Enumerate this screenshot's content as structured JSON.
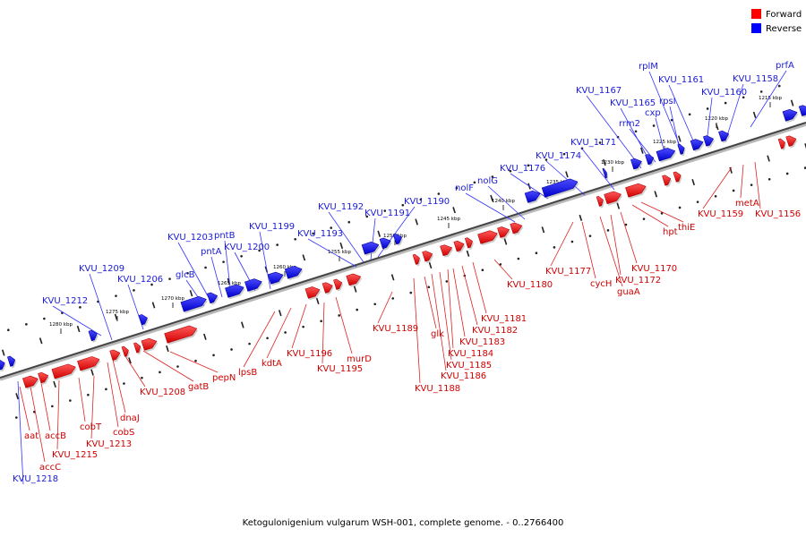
{
  "legend": {
    "forward_label": "Forward",
    "reverse_label": "Reverse",
    "forward_color": "#ff0000",
    "reverse_color": "#0000ff"
  },
  "footer": {
    "text": "Ketogulonigenium vulgarum WSH-001, complete genome. - 0..2766400"
  },
  "kbp_ticks": [
    "1280 kbp",
    "1275 kbp",
    "1270 kbp",
    "1265 kbp",
    "1260 kbp",
    "1255 kbp",
    "1250 kbp",
    "1245 kbp",
    "1240 kbp",
    "1235 kbp",
    "1230 kbp",
    "1225 kbp",
    "1220 kbp",
    "1215 kbp"
  ],
  "reverse_genes": [
    "KVU_1218",
    "KVU_1212",
    "KVU_1209",
    "KVU_1206",
    "glcB",
    "KVU_1203",
    "pntA",
    "pntB",
    "KVU_1200",
    "KVU_1199",
    "KVU_1193",
    "KVU_1192",
    "KVU_1191",
    "KVU_1190",
    "nolF",
    "nolG",
    "KVU_1176",
    "KVU_1174",
    "KVU_1171",
    "KVU_1167",
    "KVU_1165",
    "rrm2",
    "cxp",
    "rpsI",
    "rplM",
    "KVU_1161",
    "KVU_1160",
    "KVU_1158",
    "prfA"
  ],
  "forward_genes": [
    "aat",
    "accC",
    "accB",
    "KVU_1215",
    "cobT",
    "KVU_1213",
    "cobS",
    "dnaJ",
    "KVU_1208",
    "gatB",
    "pepN",
    "lpsB",
    "kdtA",
    "KVU_1196",
    "KVU_1195",
    "murD",
    "KVU_1189",
    "KVU_1188",
    "glk",
    "KVU_1186",
    "KVU_1185",
    "KVU_1184",
    "KVU_1183",
    "KVU_1182",
    "KVU_1181",
    "KVU_1180",
    "KVU_1177",
    "cycH",
    "guaA",
    "KVU_1172",
    "KVU_1170",
    "hpt",
    "thiE",
    "KVU_1159",
    "metA",
    "KVU_1156"
  ]
}
